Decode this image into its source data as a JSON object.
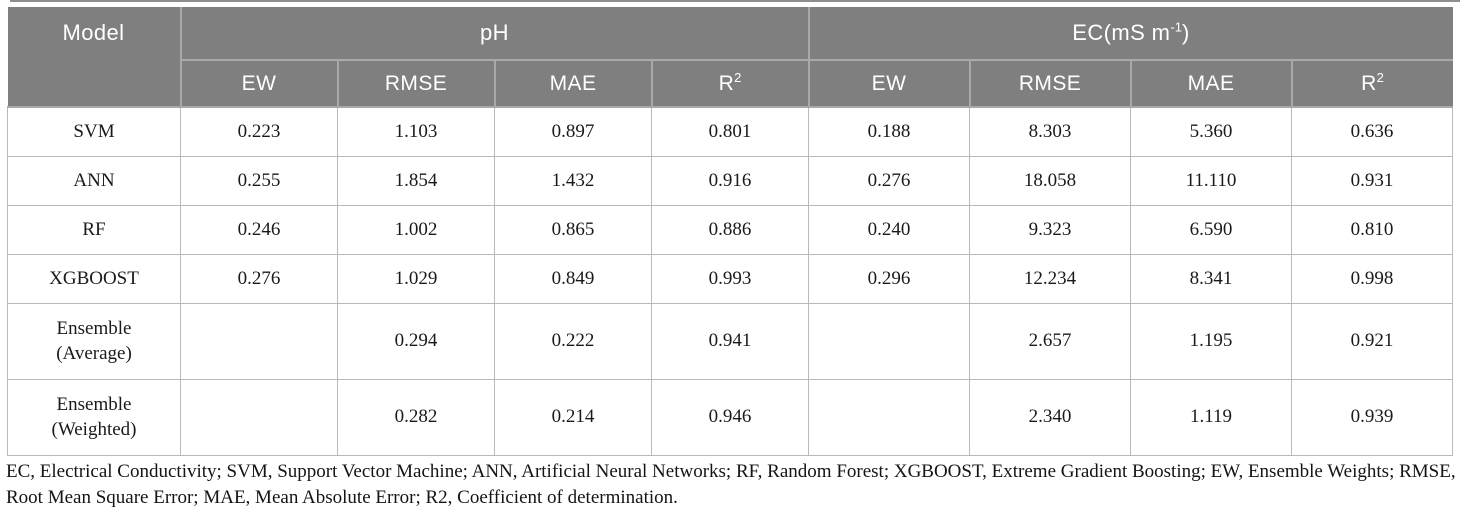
{
  "colors": {
    "header_bg": "#7f7f7f",
    "header_text": "#ffffff",
    "header_divider": "#a9a9a9",
    "body_border": "#b9b9b9",
    "body_text": "#1a1a1a",
    "top_rule": "#8f8f8f"
  },
  "table": {
    "model_header": "Model",
    "groups": [
      {
        "base": "pH",
        "sup": "",
        "suffix": ""
      },
      {
        "base": "EC(mS m",
        "sup": "-1",
        "suffix": ")"
      }
    ],
    "metric_headers": [
      {
        "base": "EW",
        "sup": ""
      },
      {
        "base": "RMSE",
        "sup": ""
      },
      {
        "base": "MAE",
        "sup": ""
      },
      {
        "base": "R",
        "sup": "2"
      }
    ],
    "rows": [
      {
        "model": "SVM",
        "values": [
          "0.223",
          "1.103",
          "0.897",
          "0.801",
          "0.188",
          "8.303",
          "5.360",
          "0.636"
        ]
      },
      {
        "model": "ANN",
        "values": [
          "0.255",
          "1.854",
          "1.432",
          "0.916",
          "0.276",
          "18.058",
          "11.110",
          "0.931"
        ]
      },
      {
        "model": "RF",
        "values": [
          "0.246",
          "1.002",
          "0.865",
          "0.886",
          "0.240",
          "9.323",
          "6.590",
          "0.810"
        ]
      },
      {
        "model": "XGBOOST",
        "values": [
          "0.276",
          "1.029",
          "0.849",
          "0.993",
          "0.296",
          "12.234",
          "8.341",
          "0.998"
        ]
      },
      {
        "model": "Ensemble\n(Average)",
        "values": [
          "",
          "0.294",
          "0.222",
          "0.941",
          "",
          "2.657",
          "1.195",
          "0.921"
        ]
      },
      {
        "model": "Ensemble\n(Weighted)",
        "values": [
          "",
          "0.282",
          "0.214",
          "0.946",
          "",
          "2.340",
          "1.119",
          "0.939"
        ]
      }
    ]
  },
  "footnote": "EC, Electrical Conductivity; SVM, Support Vector Machine; ANN, Artificial Neural Networks; RF, Random Forest; XGBOOST, Extreme Gradient Boosting; EW, Ensemble Weights; RMSE, Root Mean Square Error; MAE, Mean Absolute Error; R2, Coefficient of determination."
}
